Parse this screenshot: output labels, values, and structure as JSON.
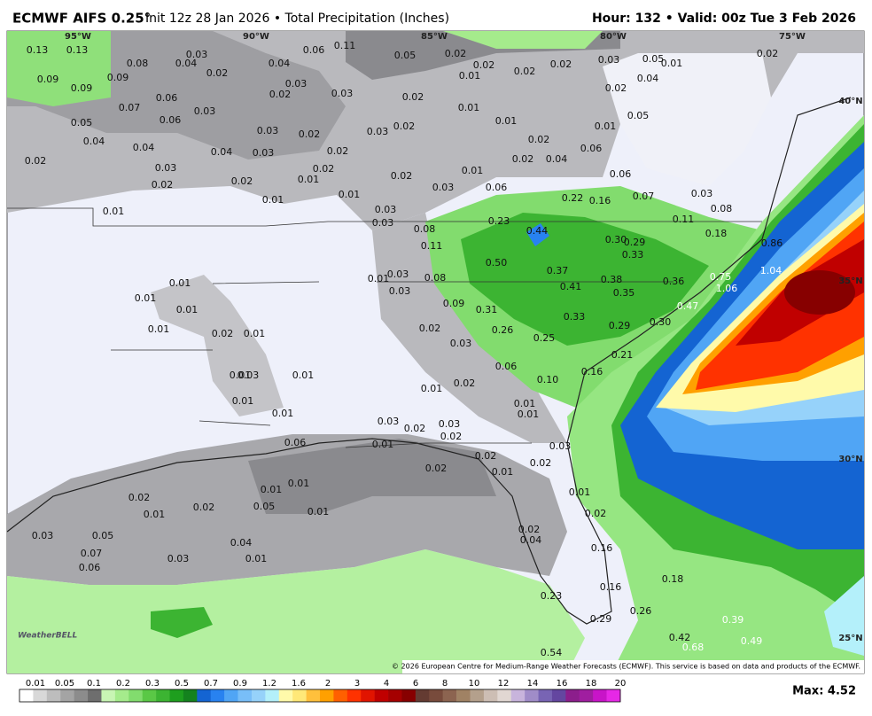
{
  "header": {
    "title": "ECMWF AIFS 0.25°",
    "subtitle": "Init 12z 28 Jan 2026 • Total Precipitation (Inches)",
    "valid": "Hour: 132 • Valid: 00z Tue 3 Feb 2026"
  },
  "map": {
    "logo": "WeatherBELL",
    "credit": "© 2026 European Centre for Medium-Range Weather Forecasts (ECMWF). This service is based on data and products of the ECMWF.",
    "grid_labels": [
      "95°W",
      "90°W",
      "85°W",
      "80°W",
      "75°W",
      "40°N",
      "35°N",
      "30°N",
      "25°N"
    ],
    "point_labels": [
      "0.13",
      "0.13",
      "0.09",
      "0.09",
      "0.09",
      "0.08",
      "0.04",
      "0.03",
      "0.02",
      "0.07",
      "0.06",
      "0.05",
      "0.06",
      "0.03",
      "0.04",
      "0.04",
      "0.02",
      "0.03",
      "0.02",
      "0.04",
      "0.03",
      "0.03",
      "0.02",
      "0.02",
      "0.03",
      "0.04",
      "0.06",
      "0.11",
      "0.05",
      "0.03",
      "0.02",
      "0.02",
      "0.01",
      "0.02",
      "0.02",
      "0.03",
      "0.05",
      "0.01",
      "0.04",
      "0.02",
      "0.02",
      "0.02",
      "0.01",
      "0.01",
      "0.03",
      "0.02",
      "0.02",
      "0.01",
      "0.05",
      "0.04",
      "0.06",
      "0.02",
      "0.01",
      "0.02",
      "0.03",
      "0.06",
      "0.02",
      "0.02",
      "0.01",
      "0.01",
      "0.02",
      "0.01",
      "0.01",
      "0.03",
      "0.03",
      "0.08",
      "0.11",
      "0.23",
      "0.22",
      "0.16",
      "0.06",
      "0.07",
      "0.03",
      "0.08",
      "0.11",
      "0.44",
      "0.30",
      "0.29",
      "0.33",
      "0.18",
      "0.86",
      "0.50",
      "0.37",
      "0.38",
      "0.41",
      "0.35",
      "0.36",
      "0.75",
      "1.06",
      "1.04",
      "0.47",
      "0.08",
      "0.03",
      "0.01",
      "0.03",
      "0.09",
      "0.31",
      "0.33",
      "0.30",
      "0.29",
      "0.26",
      "0.25",
      "0.02",
      "0.03",
      "0.06",
      "0.21",
      "0.10",
      "0.16",
      "0.01",
      "0.01",
      "0.01",
      "0.01",
      "0.02",
      "0.01",
      "0.03",
      "0.01",
      "0.01",
      "0.01",
      "0.01",
      "0.01",
      "0.02",
      "0.01",
      "0.01",
      "0.03",
      "0.02",
      "0.03",
      "0.02",
      "0.03",
      "0.01",
      "0.06",
      "0.02",
      "0.02",
      "0.01",
      "0.02",
      "0.01",
      "0.01",
      "0.02",
      "0.01",
      "0.02",
      "0.05",
      "0.01",
      "0.01",
      "0.02",
      "0.03",
      "0.05",
      "0.07",
      "0.06",
      "0.03",
      "0.04",
      "0.01",
      "0.02",
      "0.04",
      "0.16",
      "0.18",
      "0.16",
      "0.23",
      "0.29",
      "0.26",
      "0.39",
      "0.42",
      "0.68",
      "0.49",
      "0.54"
    ]
  },
  "legend": {
    "colors": [
      "#ffffff",
      "#d8d8d8",
      "#bdbdbd",
      "#a4a4a4",
      "#8c8c8c",
      "#6e6e6e",
      "#c8f5b4",
      "#a5eb8c",
      "#82dc6e",
      "#5ac846",
      "#3cb432",
      "#1e9e1e",
      "#14821e",
      "#1464d2",
      "#2882f0",
      "#50a5f5",
      "#78bef8",
      "#96d2fa",
      "#b4f0fa",
      "#fffaaa",
      "#ffe878",
      "#ffc03c",
      "#ffa000",
      "#ff6000",
      "#ff3200",
      "#e11400",
      "#c00000",
      "#a50000",
      "#870000",
      "#643b32",
      "#784b3c",
      "#8c6450",
      "#a08264",
      "#b4a08c",
      "#cdbeb4",
      "#e1d7d2",
      "#c8b4dc",
      "#a08cc8",
      "#7864b4",
      "#6446a0",
      "#8c1e8c",
      "#a01ea0",
      "#c814c8",
      "#e628e6"
    ],
    "ticks": [
      "0.01",
      "0.05",
      "0.1",
      "0.2",
      "0.3",
      "0.5",
      "0.7",
      "0.9",
      "1.2",
      "1.6",
      "2",
      "3",
      "4",
      "6",
      "8",
      "10",
      "12",
      "14",
      "16",
      "18",
      "20"
    ],
    "max": "Max: 4.52"
  }
}
